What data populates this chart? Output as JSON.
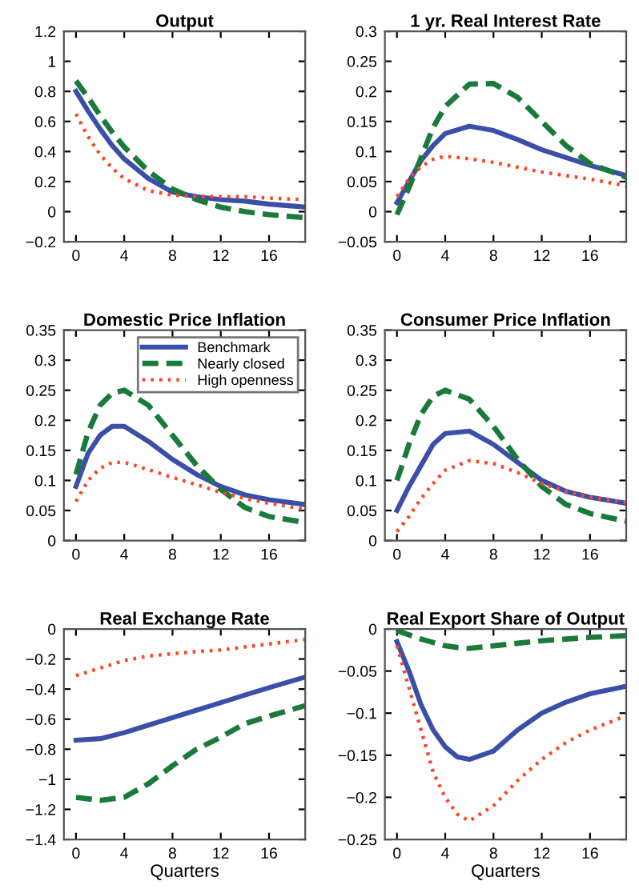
{
  "chart_data": [
    {
      "type": "line",
      "title": "Output",
      "xlim": [
        -1,
        19
      ],
      "xticks": [
        0,
        4,
        8,
        12,
        16
      ],
      "ylim": [
        -0.2,
        1.2
      ],
      "yticks": [
        -0.2,
        0,
        0.2,
        0.4,
        0.6,
        0.8,
        1,
        1.2
      ],
      "grid": false,
      "legend": false,
      "x": [
        0,
        1,
        2,
        3,
        4,
        6,
        8,
        10,
        12,
        14,
        16,
        19
      ],
      "series": [
        {
          "color": "#3a4fa8",
          "line_style": "solid",
          "values": [
            0.8,
            0.67,
            0.55,
            0.44,
            0.35,
            0.22,
            0.13,
            0.1,
            0.08,
            0.07,
            0.05,
            0.03
          ]
        },
        {
          "color": "#1a7a3a",
          "line_style": "dashed",
          "values": [
            0.87,
            0.76,
            0.64,
            0.53,
            0.43,
            0.27,
            0.15,
            0.08,
            0.03,
            0.0,
            -0.02,
            -0.04
          ]
        },
        {
          "color": "#ff4422",
          "line_style": "dotted",
          "values": [
            0.65,
            0.5,
            0.38,
            0.29,
            0.22,
            0.14,
            0.11,
            0.1,
            0.1,
            0.1,
            0.09,
            0.08
          ]
        }
      ]
    },
    {
      "type": "line",
      "title": "1 yr. Real Interest Rate",
      "xlim": [
        -1,
        19
      ],
      "xticks": [
        0,
        4,
        8,
        12,
        16
      ],
      "ylim": [
        -0.05,
        0.3
      ],
      "yticks": [
        -0.05,
        0,
        0.05,
        0.1,
        0.15,
        0.2,
        0.25,
        0.3
      ],
      "grid": false,
      "legend": false,
      "x": [
        0,
        1,
        2,
        3,
        4,
        6,
        8,
        10,
        12,
        14,
        16,
        19
      ],
      "series": [
        {
          "color": "#3a4fa8",
          "line_style": "solid",
          "values": [
            0.015,
            0.05,
            0.085,
            0.11,
            0.13,
            0.142,
            0.135,
            0.12,
            0.103,
            0.09,
            0.077,
            0.06
          ]
        },
        {
          "color": "#1a7a3a",
          "line_style": "dashed",
          "values": [
            -0.005,
            0.04,
            0.09,
            0.14,
            0.175,
            0.212,
            0.213,
            0.19,
            0.15,
            0.11,
            0.08,
            0.057
          ]
        },
        {
          "color": "#ff4422",
          "line_style": "dotted",
          "values": [
            0.025,
            0.055,
            0.075,
            0.087,
            0.092,
            0.088,
            0.082,
            0.074,
            0.066,
            0.06,
            0.054,
            0.043
          ]
        }
      ]
    },
    {
      "type": "line",
      "title": "Domestic Price Inflation",
      "xlim": [
        -1,
        19
      ],
      "xticks": [
        0,
        4,
        8,
        12,
        16
      ],
      "ylim": [
        0,
        0.35
      ],
      "yticks": [
        0,
        0.05,
        0.1,
        0.15,
        0.2,
        0.25,
        0.3,
        0.35
      ],
      "grid": false,
      "legend": "top right",
      "x": [
        0,
        1,
        2,
        3,
        4,
        6,
        8,
        10,
        12,
        14,
        16,
        19
      ],
      "series": [
        {
          "name": "Benchmark",
          "color": "#3a4fa8",
          "line_style": "solid",
          "values": [
            0.09,
            0.145,
            0.175,
            0.19,
            0.19,
            0.165,
            0.135,
            0.11,
            0.09,
            0.076,
            0.068,
            0.06
          ]
        },
        {
          "name": "Nearly closed",
          "color": "#1a7a3a",
          "line_style": "dashed",
          "values": [
            0.11,
            0.18,
            0.225,
            0.245,
            0.25,
            0.225,
            0.175,
            0.125,
            0.085,
            0.055,
            0.04,
            0.03
          ]
        },
        {
          "name": "High openness",
          "color": "#ff4422",
          "line_style": "dotted",
          "values": [
            0.065,
            0.1,
            0.12,
            0.13,
            0.13,
            0.118,
            0.105,
            0.093,
            0.08,
            0.07,
            0.062,
            0.052
          ]
        }
      ]
    },
    {
      "type": "line",
      "title": "Consumer Price Inflation",
      "xlim": [
        -1,
        19
      ],
      "xticks": [
        0,
        4,
        8,
        12,
        16
      ],
      "ylim": [
        0,
        0.35
      ],
      "yticks": [
        0,
        0.05,
        0.1,
        0.15,
        0.2,
        0.25,
        0.3,
        0.35
      ],
      "grid": false,
      "legend": false,
      "x": [
        0,
        1,
        2,
        3,
        4,
        6,
        8,
        10,
        12,
        14,
        16,
        19
      ],
      "series": [
        {
          "color": "#3a4fa8",
          "line_style": "solid",
          "values": [
            0.05,
            0.09,
            0.125,
            0.16,
            0.178,
            0.182,
            0.16,
            0.13,
            0.1,
            0.082,
            0.072,
            0.062
          ]
        },
        {
          "color": "#1a7a3a",
          "line_style": "dashed",
          "values": [
            0.1,
            0.16,
            0.21,
            0.24,
            0.25,
            0.235,
            0.19,
            0.135,
            0.09,
            0.06,
            0.045,
            0.032
          ]
        },
        {
          "color": "#ff4422",
          "line_style": "dotted",
          "values": [
            0.015,
            0.04,
            0.07,
            0.095,
            0.117,
            0.133,
            0.128,
            0.113,
            0.095,
            0.082,
            0.072,
            0.063
          ]
        }
      ]
    },
    {
      "type": "line",
      "title": "Real Exchange Rate",
      "xlabel": "Quarters",
      "xlim": [
        -1,
        19
      ],
      "xticks": [
        0,
        4,
        8,
        12,
        16
      ],
      "ylim": [
        -1.4,
        0
      ],
      "yticks": [
        -1.4,
        -1.2,
        -1,
        -0.8,
        -0.6,
        -0.4,
        -0.2,
        0
      ],
      "grid": false,
      "legend": false,
      "x": [
        0,
        2,
        4,
        6,
        8,
        10,
        12,
        14,
        16,
        19
      ],
      "series": [
        {
          "color": "#3a4fa8",
          "line_style": "solid",
          "values": [
            -0.74,
            -0.73,
            -0.69,
            -0.64,
            -0.59,
            -0.54,
            -0.49,
            -0.44,
            -0.39,
            -0.32
          ]
        },
        {
          "color": "#1a7a3a",
          "line_style": "dashed",
          "values": [
            -1.12,
            -1.14,
            -1.12,
            -1.03,
            -0.91,
            -0.8,
            -0.72,
            -0.63,
            -0.58,
            -0.51
          ]
        },
        {
          "color": "#ff4422",
          "line_style": "dotted",
          "values": [
            -0.31,
            -0.26,
            -0.21,
            -0.18,
            -0.165,
            -0.15,
            -0.14,
            -0.12,
            -0.1,
            -0.07
          ]
        }
      ]
    },
    {
      "type": "line",
      "title": "Real Export Share of Output",
      "xlabel": "Quarters",
      "xlim": [
        -1,
        19
      ],
      "xticks": [
        0,
        4,
        8,
        12,
        16
      ],
      "ylim": [
        -0.25,
        0
      ],
      "yticks": [
        -0.25,
        -0.2,
        -0.15,
        -0.1,
        -0.05,
        0
      ],
      "grid": false,
      "legend": false,
      "x": [
        0,
        1,
        2,
        3,
        4,
        5,
        6,
        8,
        10,
        12,
        14,
        16,
        19
      ],
      "series": [
        {
          "color": "#3a4fa8",
          "line_style": "solid",
          "values": [
            -0.015,
            -0.05,
            -0.09,
            -0.12,
            -0.14,
            -0.152,
            -0.155,
            -0.145,
            -0.12,
            -0.1,
            -0.087,
            -0.077,
            -0.068
          ]
        },
        {
          "color": "#1a7a3a",
          "line_style": "dashed",
          "values": [
            -0.002,
            -0.007,
            -0.012,
            -0.016,
            -0.02,
            -0.022,
            -0.023,
            -0.02,
            -0.017,
            -0.014,
            -0.012,
            -0.01,
            -0.008
          ]
        },
        {
          "color": "#ff4422",
          "line_style": "dotted",
          "values": [
            -0.02,
            -0.07,
            -0.12,
            -0.17,
            -0.2,
            -0.22,
            -0.228,
            -0.21,
            -0.18,
            -0.155,
            -0.135,
            -0.12,
            -0.103
          ]
        }
      ]
    }
  ]
}
